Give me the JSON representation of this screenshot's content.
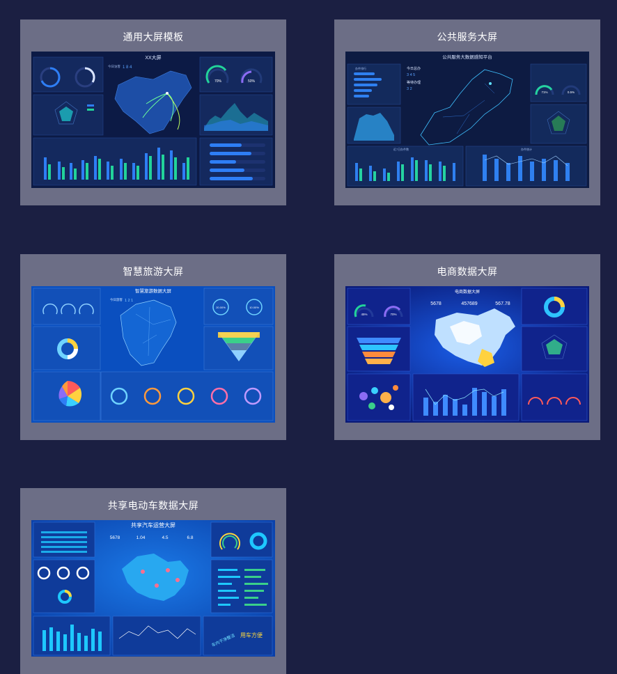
{
  "templates": [
    {
      "title": "通用大屏模板",
      "header": "XX大屏",
      "counter_label": "今日访客",
      "counter_value": "1 8 4",
      "ring1_text": "70%",
      "ring2_text": "50%",
      "theme": {
        "bg": "#0c1a45",
        "panel": "#14295e",
        "accent": "#2e7ef5",
        "accent2": "#22d39a"
      }
    },
    {
      "title": "公共服务大屏",
      "header": "公共服务大数据感知平台",
      "stat1_label": "今日总办",
      "stat1_value": "3 4 5",
      "stat2_label": "等待办理",
      "stat2_value": "3 2",
      "ring1_text": "71%",
      "ring2_text": "0.5%",
      "panel1_title": "办件排行",
      "panel2_title": "近7日办件数",
      "panel3_title": "办件统计",
      "theme": {
        "bg": "#0d1b42",
        "panel": "#132a5c",
        "accent": "#2f80f0",
        "accent2": "#25d3a0"
      }
    },
    {
      "title": "智慧旅游大屏",
      "header": "智慧旅游数据大屏",
      "counter_label": "今日游客",
      "counter_value": "1 2 1",
      "ring1_text": "20.00%",
      "ring2_text": "10.00%",
      "theme": {
        "bg": "#0a4fbf",
        "panel": "#1250b8",
        "accent": "#6fd3ff",
        "accent2": "#ffd23f"
      }
    },
    {
      "title": "电商数据大屏",
      "header": "电商数据大屏",
      "kpi1": "5678",
      "kpi2": "457689",
      "kpi3": "567.78",
      "ring1_text": "45%",
      "ring2_text": "70%",
      "theme": {
        "bg": "#0a1a78",
        "panel": "#10238c",
        "accent": "#3f8bff",
        "accent2": "#8ee8ff"
      }
    },
    {
      "title": "共享电动车数据大屏",
      "header": "共享汽车运营大屏",
      "kpi1": "5678",
      "kpi2": "1.04",
      "kpi3": "4.5",
      "kpi4": "6.8",
      "word1": "用车方便",
      "word2": "车内干净整洁",
      "theme": {
        "bg": "#0a3fa8",
        "panel": "#0f3b9a",
        "accent": "#1ec8ff",
        "accent2": "#ffd83c"
      }
    }
  ]
}
